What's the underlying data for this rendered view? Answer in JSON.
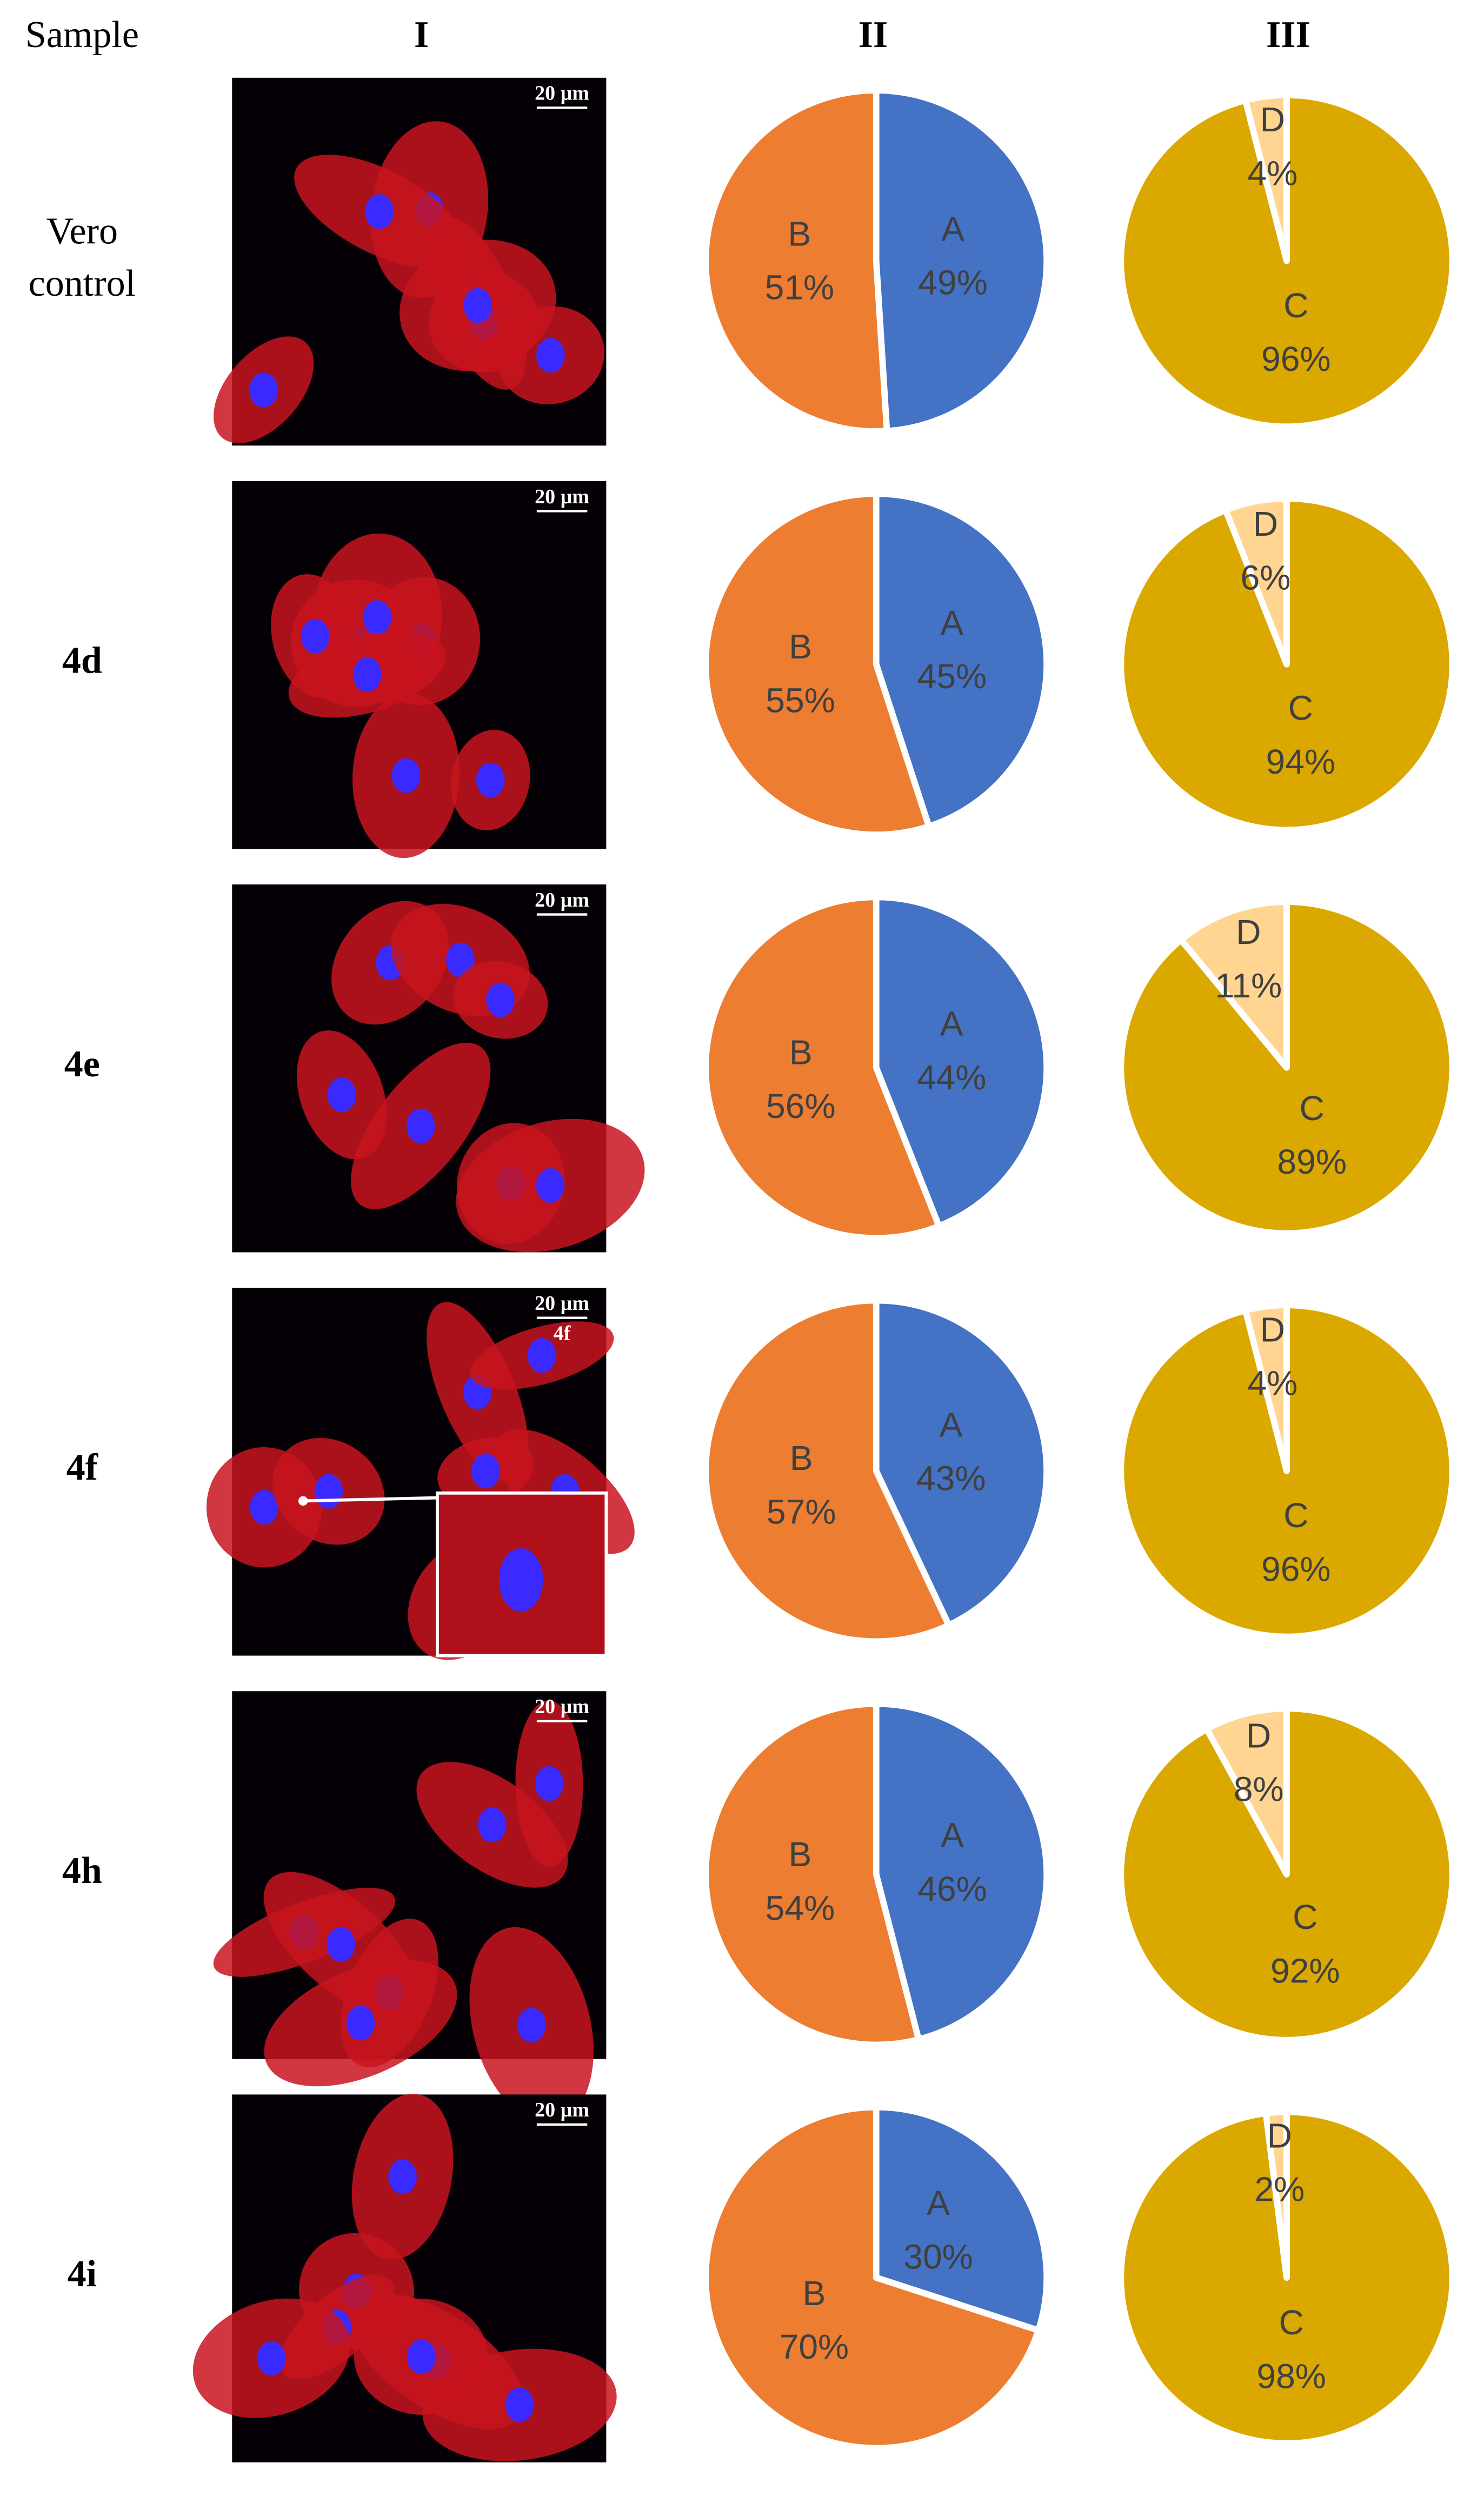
{
  "header": {
    "sample": "Sample",
    "columns": [
      "I",
      "II",
      "III"
    ]
  },
  "rows": [
    {
      "sample": [
        "Vero",
        "control"
      ],
      "scale_bar": "20 µm",
      "chart_data": [
        {
          "type": "pie",
          "categories": [
            "A",
            "B"
          ],
          "values": [
            49,
            51
          ],
          "value_labels": [
            "49%",
            "51%"
          ],
          "colors": [
            "#4472c4",
            "#ed7d31"
          ]
        },
        {
          "type": "pie",
          "categories": [
            "C",
            "D"
          ],
          "values": [
            96,
            4
          ],
          "value_labels": [
            "96%",
            "4%"
          ],
          "colors": [
            "#dba800",
            "#ffd591"
          ]
        }
      ]
    },
    {
      "sample": [
        "4d"
      ],
      "scale_bar": "20 µm",
      "chart_data": [
        {
          "type": "pie",
          "categories": [
            "A",
            "B"
          ],
          "values": [
            45,
            55
          ],
          "value_labels": [
            "45%",
            "55%"
          ],
          "colors": [
            "#4472c4",
            "#ed7d31"
          ]
        },
        {
          "type": "pie",
          "categories": [
            "C",
            "D"
          ],
          "values": [
            94,
            6
          ],
          "value_labels": [
            "94%",
            "6%"
          ],
          "colors": [
            "#dba800",
            "#ffd591"
          ]
        }
      ]
    },
    {
      "sample": [
        "4e"
      ],
      "scale_bar": "20 µm",
      "chart_data": [
        {
          "type": "pie",
          "categories": [
            "A",
            "B"
          ],
          "values": [
            44,
            56
          ],
          "value_labels": [
            "44%",
            "56%"
          ],
          "colors": [
            "#4472c4",
            "#ed7d31"
          ]
        },
        {
          "type": "pie",
          "categories": [
            "C",
            "D"
          ],
          "values": [
            89,
            11
          ],
          "value_labels": [
            "89%",
            "11%"
          ],
          "colors": [
            "#dba800",
            "#ffd591"
          ]
        }
      ]
    },
    {
      "sample": [
        "4f"
      ],
      "scale_bar": "20 µm",
      "inset_label": "4f",
      "chart_data": [
        {
          "type": "pie",
          "categories": [
            "A",
            "B"
          ],
          "values": [
            43,
            57
          ],
          "value_labels": [
            "43%",
            "57%"
          ],
          "colors": [
            "#4472c4",
            "#ed7d31"
          ]
        },
        {
          "type": "pie",
          "categories": [
            "C",
            "D"
          ],
          "values": [
            96,
            4
          ],
          "value_labels": [
            "96%",
            "4%"
          ],
          "colors": [
            "#dba800",
            "#ffd591"
          ]
        }
      ]
    },
    {
      "sample": [
        "4h"
      ],
      "scale_bar": "20 µm",
      "chart_data": [
        {
          "type": "pie",
          "categories": [
            "A",
            "B"
          ],
          "values": [
            46,
            54
          ],
          "value_labels": [
            "46%",
            "54%"
          ],
          "colors": [
            "#4472c4",
            "#ed7d31"
          ]
        },
        {
          "type": "pie",
          "categories": [
            "C",
            "D"
          ],
          "values": [
            92,
            8
          ],
          "value_labels": [
            "92%",
            "8%"
          ],
          "colors": [
            "#dba800",
            "#ffd591"
          ]
        }
      ]
    },
    {
      "sample": [
        "4i"
      ],
      "scale_bar": "20 µm",
      "chart_data": [
        {
          "type": "pie",
          "categories": [
            "A",
            "B"
          ],
          "values": [
            30,
            70
          ],
          "value_labels": [
            "30%",
            "70%"
          ],
          "colors": [
            "#4472c4",
            "#ed7d31"
          ]
        },
        {
          "type": "pie",
          "categories": [
            "C",
            "D"
          ],
          "values": [
            98,
            2
          ],
          "value_labels": [
            "98%",
            "2%"
          ],
          "colors": [
            "#dba800",
            "#ffd591"
          ]
        }
      ]
    }
  ]
}
